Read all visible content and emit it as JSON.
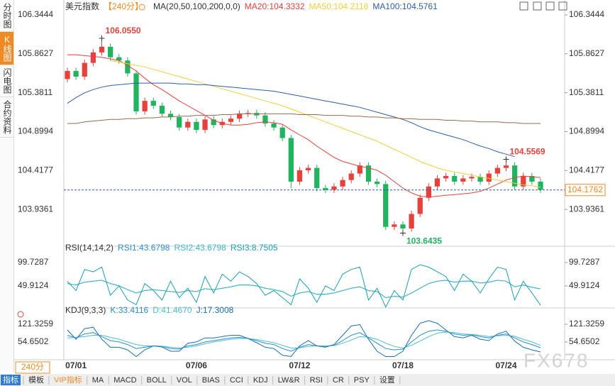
{
  "sidebar": {
    "tabs": [
      "分时图",
      "K线图",
      "闪电图",
      "合约资料"
    ]
  },
  "toolbar": {
    "period": "240分",
    "items": [
      "指标",
      "模板",
      "VIP指标",
      "MA",
      "MACD",
      "BOLL",
      "VOL",
      "BIAS",
      "CCI",
      "KDJ",
      "LW&R",
      "RSI",
      "CR",
      "PSY",
      "设置"
    ]
  },
  "watermark": "FX678",
  "chart_data": [
    {
      "type": "candlestick",
      "title": "美元指数",
      "period": "【240分】",
      "ma_label": "MA(20,50,100,200,0,0)",
      "up_color": "#e8413c",
      "down_color": "#22b35e",
      "categories": [
        null,
        "07/01",
        null,
        null,
        null,
        null,
        null,
        null,
        null,
        null,
        null,
        null,
        null,
        null,
        null,
        "07/06",
        null,
        null,
        null,
        null,
        null,
        null,
        null,
        null,
        null,
        null,
        null,
        "07/12",
        null,
        null,
        null,
        null,
        null,
        null,
        null,
        null,
        null,
        null,
        null,
        "07/18",
        null,
        null,
        null,
        null,
        null,
        null,
        null,
        null,
        null,
        null,
        null,
        "07/24",
        null,
        null,
        null,
        null
      ],
      "open": [
        105.55,
        105.65,
        105.58,
        105.75,
        105.88,
        105.95,
        105.82,
        105.78,
        105.62,
        105.15,
        105.28,
        105.22,
        105.12,
        105.08,
        104.95,
        105.02,
        104.92,
        105.05,
        104.98,
        105.02,
        105.06,
        105.12,
        105.13,
        105.1,
        105.0,
        104.95,
        104.82,
        104.28,
        104.42,
        104.45,
        104.2,
        104.18,
        104.22,
        104.3,
        104.38,
        104.48,
        104.28,
        104.25,
        103.72,
        103.75,
        103.7,
        103.88,
        104.08,
        104.22,
        104.32,
        104.35,
        104.28,
        104.32,
        104.34,
        104.28,
        104.38,
        104.45,
        104.48,
        104.22,
        104.35,
        104.28
      ],
      "high": [
        105.69,
        105.69,
        105.79,
        105.92,
        106.055,
        105.99,
        105.86,
        105.82,
        105.66,
        105.32,
        105.32,
        105.26,
        105.16,
        105.12,
        105.06,
        105.06,
        105.09,
        105.09,
        105.06,
        105.1,
        105.16,
        105.17,
        105.17,
        105.14,
        105.04,
        104.99,
        104.86,
        104.46,
        104.49,
        104.49,
        104.24,
        104.26,
        104.34,
        104.42,
        104.52,
        104.52,
        104.32,
        104.29,
        103.79,
        103.79,
        103.92,
        104.12,
        104.26,
        104.36,
        104.39,
        104.39,
        104.36,
        104.38,
        104.38,
        104.42,
        104.49,
        104.5569,
        104.52,
        104.39,
        104.39,
        104.32
      ],
      "low": [
        105.51,
        105.54,
        105.54,
        105.71,
        105.84,
        105.78,
        105.74,
        105.58,
        105.11,
        105.11,
        105.18,
        105.08,
        105.04,
        104.91,
        104.91,
        104.88,
        104.88,
        104.94,
        104.94,
        104.98,
        105.02,
        105.08,
        105.06,
        104.96,
        104.91,
        104.78,
        104.2,
        104.24,
        104.38,
        104.16,
        104.14,
        104.14,
        104.18,
        104.26,
        104.34,
        104.24,
        104.21,
        103.68,
        103.68,
        103.6435,
        103.66,
        103.84,
        104.04,
        104.18,
        104.28,
        104.24,
        104.24,
        104.28,
        104.24,
        104.24,
        104.34,
        104.41,
        104.18,
        104.18,
        104.24,
        104.14
      ],
      "close": [
        105.65,
        105.58,
        105.75,
        105.88,
        105.95,
        105.82,
        105.78,
        105.62,
        105.15,
        105.28,
        105.22,
        105.12,
        105.08,
        104.95,
        105.02,
        104.92,
        105.05,
        104.98,
        105.02,
        105.06,
        105.12,
        105.13,
        105.1,
        105.0,
        104.95,
        104.82,
        104.28,
        104.42,
        104.45,
        104.2,
        104.18,
        104.22,
        104.3,
        104.38,
        104.48,
        104.28,
        104.25,
        103.72,
        103.75,
        103.7,
        103.88,
        104.08,
        104.22,
        104.32,
        104.35,
        104.28,
        104.32,
        104.34,
        104.28,
        104.38,
        104.45,
        104.48,
        104.22,
        104.35,
        104.28,
        104.18
      ],
      "series": [
        {
          "name": "MA20:104.3332",
          "color": "#e8413c",
          "values": [
            105.85,
            105.85,
            105.84,
            105.83,
            105.82,
            105.8,
            105.78,
            105.72,
            105.65,
            105.56,
            105.48,
            105.42,
            105.35,
            105.28,
            105.22,
            105.16,
            105.1,
            105.04,
            105.0,
            104.98,
            104.98,
            104.99,
            105.01,
            105.02,
            105.01,
            104.99,
            104.92,
            104.86,
            104.8,
            104.72,
            104.65,
            104.58,
            104.53,
            104.5,
            104.47,
            104.45,
            104.42,
            104.36,
            104.28,
            104.2,
            104.14,
            104.1,
            104.09,
            104.1,
            104.11,
            104.12,
            104.13,
            104.14,
            104.16,
            104.2,
            104.25,
            104.3,
            104.33,
            104.35,
            104.34,
            104.33
          ]
        },
        {
          "name": "MA50:104.2118",
          "color": "#f2cf3a",
          "values": [
            null,
            null,
            null,
            null,
            null,
            105.78,
            105.76,
            105.74,
            105.72,
            105.7,
            105.67,
            105.64,
            105.61,
            105.58,
            105.55,
            105.52,
            105.49,
            105.46,
            105.43,
            105.4,
            105.37,
            105.34,
            105.31,
            105.28,
            105.25,
            105.22,
            105.18,
            105.14,
            105.1,
            105.06,
            105.02,
            104.98,
            104.94,
            104.9,
            104.86,
            104.82,
            104.78,
            104.73,
            104.68,
            104.63,
            104.58,
            104.53,
            104.49,
            104.45,
            104.42,
            104.4,
            104.38,
            104.36,
            104.34,
            104.32,
            104.3,
            104.28,
            104.26,
            104.24,
            104.23,
            104.21
          ]
        },
        {
          "name": "MA100:104.5761",
          "color": "#2d5fa8",
          "values": [
            105.25,
            105.32,
            105.38,
            105.42,
            105.45,
            105.47,
            105.48,
            105.49,
            105.5,
            105.5,
            105.5,
            105.5,
            105.5,
            105.49,
            105.49,
            105.48,
            105.48,
            105.47,
            105.46,
            105.45,
            105.44,
            105.43,
            105.42,
            105.41,
            105.4,
            105.38,
            105.36,
            105.34,
            105.32,
            105.3,
            105.28,
            105.26,
            105.24,
            105.22,
            105.2,
            105.17,
            105.14,
            105.11,
            105.08,
            105.05,
            105.01,
            104.96,
            104.92,
            104.89,
            104.86,
            104.83,
            104.8,
            104.76,
            104.72,
            104.69,
            104.65,
            104.62,
            104.59,
            null,
            null,
            null
          ]
        },
        {
          "color": "#9b6a4a",
          "values": [
            105.0,
            105.0,
            105.02,
            105.03,
            105.04,
            105.05,
            105.05,
            105.06,
            105.06,
            105.07,
            105.07,
            105.08,
            105.08,
            105.09,
            105.09,
            105.1,
            105.1,
            105.1,
            105.11,
            105.11,
            105.12,
            105.12,
            105.12,
            105.12,
            105.12,
            105.12,
            105.12,
            105.11,
            105.11,
            105.11,
            105.1,
            105.1,
            105.1,
            105.09,
            105.09,
            105.08,
            105.08,
            105.07,
            105.07,
            105.06,
            105.06,
            105.05,
            105.05,
            105.05,
            105.04,
            105.04,
            105.03,
            105.03,
            105.02,
            105.02,
            105.02,
            105.01,
            105.01,
            105.0,
            105.0,
            105.0
          ]
        }
      ],
      "annotations": [
        {
          "label": "106.0550",
          "value": 106.055,
          "index": 4,
          "color": "#e8413c",
          "side": "above"
        },
        {
          "label": "104.5569",
          "value": 104.5569,
          "index": 51,
          "color": "#e8413c",
          "side": "above"
        },
        {
          "label": "103.6435",
          "value": 103.6435,
          "index": 39,
          "color": "#22b35e",
          "side": "below"
        }
      ],
      "last_price": 104.1762,
      "last_color": "#f08a24",
      "ylim": [
        103.498,
        106.441
      ],
      "yticks": [
        103.9361,
        104.4177,
        104.8994,
        105.3811,
        105.8627,
        106.3444
      ]
    },
    {
      "type": "line",
      "title": "RSI(14,14,2)",
      "series": [
        {
          "name": "RSI1:43.6798",
          "color": "#2f8fd8",
          "values": [
            55,
            52,
            58,
            60,
            62,
            55,
            50,
            42,
            35,
            40,
            42,
            40,
            38,
            36,
            40,
            38,
            44,
            42,
            45,
            48,
            52,
            52,
            50,
            45,
            42,
            38,
            28,
            35,
            38,
            32,
            32,
            35,
            40,
            45,
            48,
            40,
            38,
            25,
            28,
            26,
            35,
            45,
            55,
            60,
            62,
            58,
            60,
            60,
            56,
            58,
            62,
            60,
            48,
            52,
            47,
            43.6798
          ]
        },
        {
          "name": "RSI2:43.6798",
          "color": "#3fb8c8",
          "values": [
            55,
            52,
            58,
            60,
            62,
            55,
            50,
            42,
            35,
            40,
            42,
            40,
            38,
            36,
            40,
            38,
            44,
            42,
            45,
            48,
            52,
            52,
            50,
            45,
            42,
            38,
            28,
            35,
            38,
            32,
            32,
            35,
            40,
            45,
            48,
            40,
            38,
            25,
            28,
            26,
            35,
            45,
            55,
            60,
            62,
            58,
            60,
            60,
            56,
            58,
            62,
            60,
            48,
            52,
            47,
            43.6798
          ]
        },
        {
          "name": "RSI3:8.7505",
          "color": "#1c9fb0",
          "values": [
            60,
            40,
            85,
            80,
            90,
            30,
            50,
            20,
            10,
            55,
            40,
            20,
            60,
            25,
            45,
            15,
            70,
            35,
            75,
            60,
            80,
            70,
            55,
            30,
            40,
            25,
            10,
            65,
            45,
            15,
            50,
            40,
            75,
            85,
            90,
            20,
            45,
            5,
            40,
            20,
            85,
            95,
            90,
            80,
            70,
            40,
            75,
            60,
            35,
            65,
            90,
            85,
            20,
            60,
            35,
            8.7505
          ]
        }
      ],
      "ylim": [
        6.1,
        129.9
      ],
      "yticks": [
        49.9124,
        99.7287
      ]
    },
    {
      "type": "line",
      "title": "KDJ(9,3,3)",
      "series": [
        {
          "name": "K:33.4116",
          "color": "#2b8cd6",
          "values": [
            80,
            70,
            85,
            90,
            75,
            60,
            55,
            45,
            30,
            35,
            40,
            38,
            30,
            28,
            40,
            45,
            55,
            60,
            65,
            70,
            72,
            68,
            60,
            50,
            45,
            30,
            20,
            35,
            45,
            40,
            38,
            42,
            60,
            80,
            90,
            70,
            50,
            30,
            25,
            28,
            55,
            80,
            95,
            100,
            95,
            85,
            80,
            82,
            75,
            70,
            80,
            85,
            70,
            55,
            45,
            33.4116
          ]
        },
        {
          "name": "D:41.4670",
          "color": "#4cbfcc",
          "values": [
            70,
            72,
            75,
            80,
            80,
            72,
            65,
            55,
            45,
            40,
            40,
            39,
            35,
            32,
            35,
            40,
            48,
            55,
            60,
            65,
            68,
            68,
            64,
            58,
            52,
            42,
            32,
            33,
            38,
            40,
            40,
            41,
            50,
            62,
            75,
            73,
            65,
            50,
            38,
            32,
            42,
            58,
            75,
            88,
            92,
            90,
            85,
            83,
            80,
            75,
            78,
            80,
            76,
            65,
            55,
            41.467
          ]
        },
        {
          "name": "J:17.3008",
          "color": "#1a6fb8",
          "values": [
            100,
            65,
            105,
            110,
            65,
            35,
            35,
            25,
            0,
            25,
            40,
            36,
            20,
            20,
            50,
            55,
            70,
            70,
            75,
            80,
            80,
            68,
            52,
            35,
            30,
            5,
            0,
            40,
            60,
            40,
            35,
            45,
            80,
            115,
            120,
            65,
            20,
            0,
            0,
            20,
            80,
            125,
            135,
            125,
            100,
            75,
            70,
            80,
            65,
            60,
            85,
            95,
            58,
            35,
            25,
            17.3008
          ]
        }
      ],
      "ylim": [
        -6.7,
        172.0
      ],
      "yticks": [
        54.6502,
        121.3259
      ]
    }
  ]
}
